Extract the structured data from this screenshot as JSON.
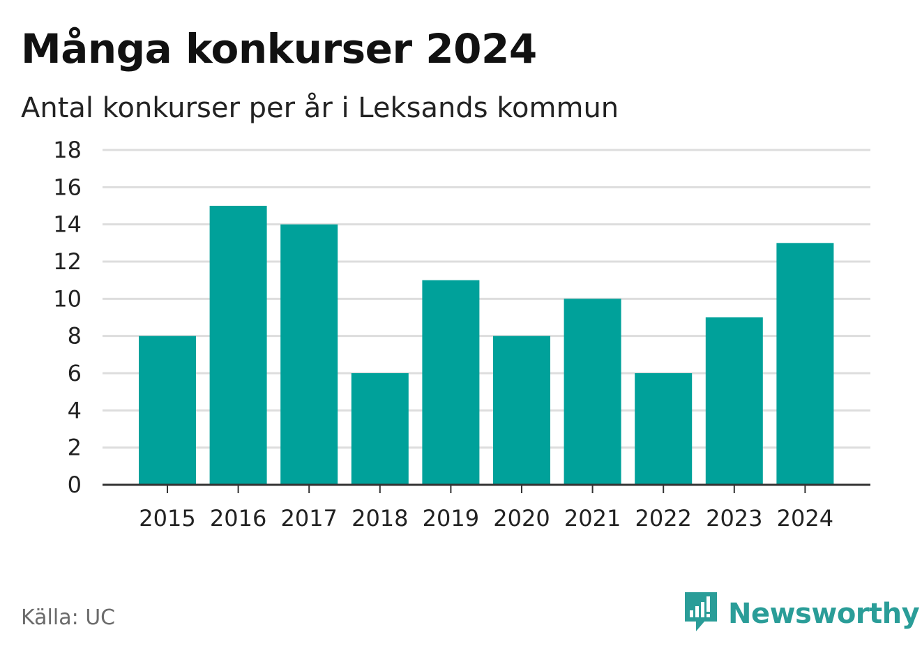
{
  "header": {
    "title": "Många konkurser 2024",
    "subtitle": "Antal konkurser per år i Leksands kommun"
  },
  "footer": {
    "source": "Källa: UC",
    "brand": "Newsworthy",
    "brand_icon": "newsworthy-logo-icon"
  },
  "colors": {
    "bar": "#00a19a",
    "grid": "#dddddd",
    "axis": "#333333",
    "brand": "#2a9d98"
  },
  "chart_data": {
    "type": "bar",
    "title": "Många konkurser 2024",
    "subtitle": "Antal konkurser per år i Leksands kommun",
    "xlabel": "",
    "ylabel": "",
    "categories": [
      "2015",
      "2016",
      "2017",
      "2018",
      "2019",
      "2020",
      "2021",
      "2022",
      "2023",
      "2024"
    ],
    "values": [
      8,
      15,
      14,
      6,
      11,
      8,
      10,
      6,
      9,
      13
    ],
    "ylim": [
      0,
      18
    ],
    "yticks": [
      "0",
      "2",
      "4",
      "6",
      "8",
      "10",
      "12",
      "14",
      "16",
      "18"
    ],
    "grid": true,
    "legend": "none"
  }
}
